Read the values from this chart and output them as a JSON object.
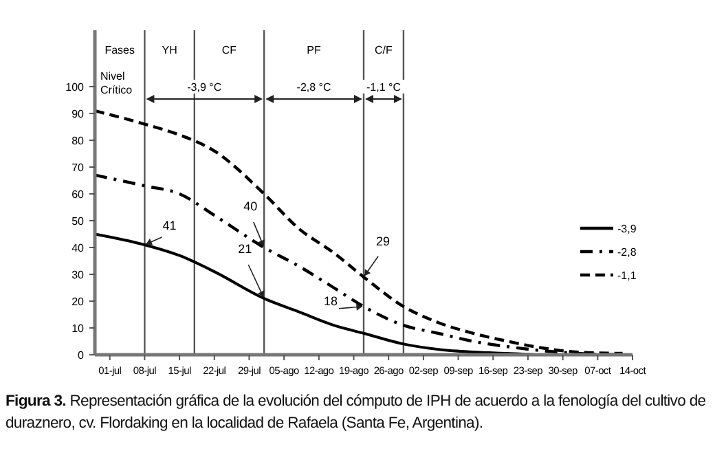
{
  "chart_data": {
    "type": "line",
    "x": [
      "--06-28",
      "--07-08",
      "--07-15",
      "--07-22",
      "--08-01",
      "--08-08",
      "--08-15",
      "--08-21",
      "--08-29",
      "--09-05",
      "--09-12",
      "--09-19",
      "--09-26",
      "--10-03",
      "--10-12"
    ],
    "xlim": [
      "--06-28",
      "--10-14"
    ],
    "xticks": [
      {
        "value": "--07-01",
        "label": "01-jul"
      },
      {
        "value": "--07-08",
        "label": "08-jul"
      },
      {
        "value": "--07-15",
        "label": "15-jul"
      },
      {
        "value": "--07-22",
        "label": "22-jul"
      },
      {
        "value": "--07-29",
        "label": "29-jul"
      },
      {
        "value": "--08-05",
        "label": "05-ago"
      },
      {
        "value": "--08-12",
        "label": "12-ago"
      },
      {
        "value": "--08-19",
        "label": "19-ago"
      },
      {
        "value": "--08-26",
        "label": "26-ago"
      },
      {
        "value": "--09-02",
        "label": "02-sep"
      },
      {
        "value": "--09-09",
        "label": "09-sep"
      },
      {
        "value": "--09-16",
        "label": "16-sep"
      },
      {
        "value": "--09-23",
        "label": "23-sep"
      },
      {
        "value": "--09-30",
        "label": "30-sep"
      },
      {
        "value": "--10-07",
        "label": "07-oct"
      },
      {
        "value": "--10-14",
        "label": "14-oct"
      }
    ],
    "ylim": [
      0,
      120
    ],
    "yticks": [
      0,
      10,
      20,
      30,
      40,
      50,
      60,
      70,
      80,
      90,
      100
    ],
    "series": [
      {
        "name": "-3,9",
        "color": "#000000",
        "line_style": "solid",
        "values": [
          45,
          41,
          37,
          31,
          21,
          16,
          11,
          8,
          4,
          2,
          1,
          0.5,
          0,
          0,
          0
        ]
      },
      {
        "name": "-2,8",
        "color": "#000000",
        "line_style": "dashdot",
        "values": [
          67,
          63,
          60,
          52,
          40,
          33,
          25,
          18,
          11,
          8,
          5,
          3,
          1.5,
          0.5,
          0
        ]
      },
      {
        "name": "-1,1",
        "color": "#000000",
        "line_style": "dashed",
        "values": [
          91,
          86,
          82,
          76,
          60,
          47,
          38,
          29,
          18,
          12,
          8,
          5,
          2.5,
          1,
          0.5
        ]
      }
    ],
    "legend": "right",
    "marker": "none",
    "grid": false,
    "ref_lines": [
      {
        "axis": "x",
        "value": "--07-08"
      },
      {
        "axis": "x",
        "value": "--07-18"
      },
      {
        "axis": "x",
        "value": "--08-01"
      },
      {
        "axis": "x",
        "value": "--08-21"
      },
      {
        "axis": "x",
        "value": "--08-29"
      }
    ],
    "annotations": [
      "Fases",
      "YH",
      "CF",
      "PF",
      "C/F",
      "Nivel Crítico",
      "-3,9 °C",
      "-2,8 °C",
      "-1,1 °C",
      {
        "text": "41",
        "x": "--07-08",
        "y": 41
      },
      {
        "text": "40",
        "x": "--08-01",
        "y": 40
      },
      {
        "text": "21",
        "x": "--08-01",
        "y": 21
      },
      {
        "text": "29",
        "x": "--08-21",
        "y": 29
      },
      {
        "text": "18",
        "x": "--08-21",
        "y": 18
      },
      "Figura 3. Representación gráfica de la evolución del cómputo de IPH de acuerdo a la fenología del cultivo de duraznero, cv. Flordaking en la localidad de Rafaela (Santa Fe, Argentina)."
    ]
  }
}
